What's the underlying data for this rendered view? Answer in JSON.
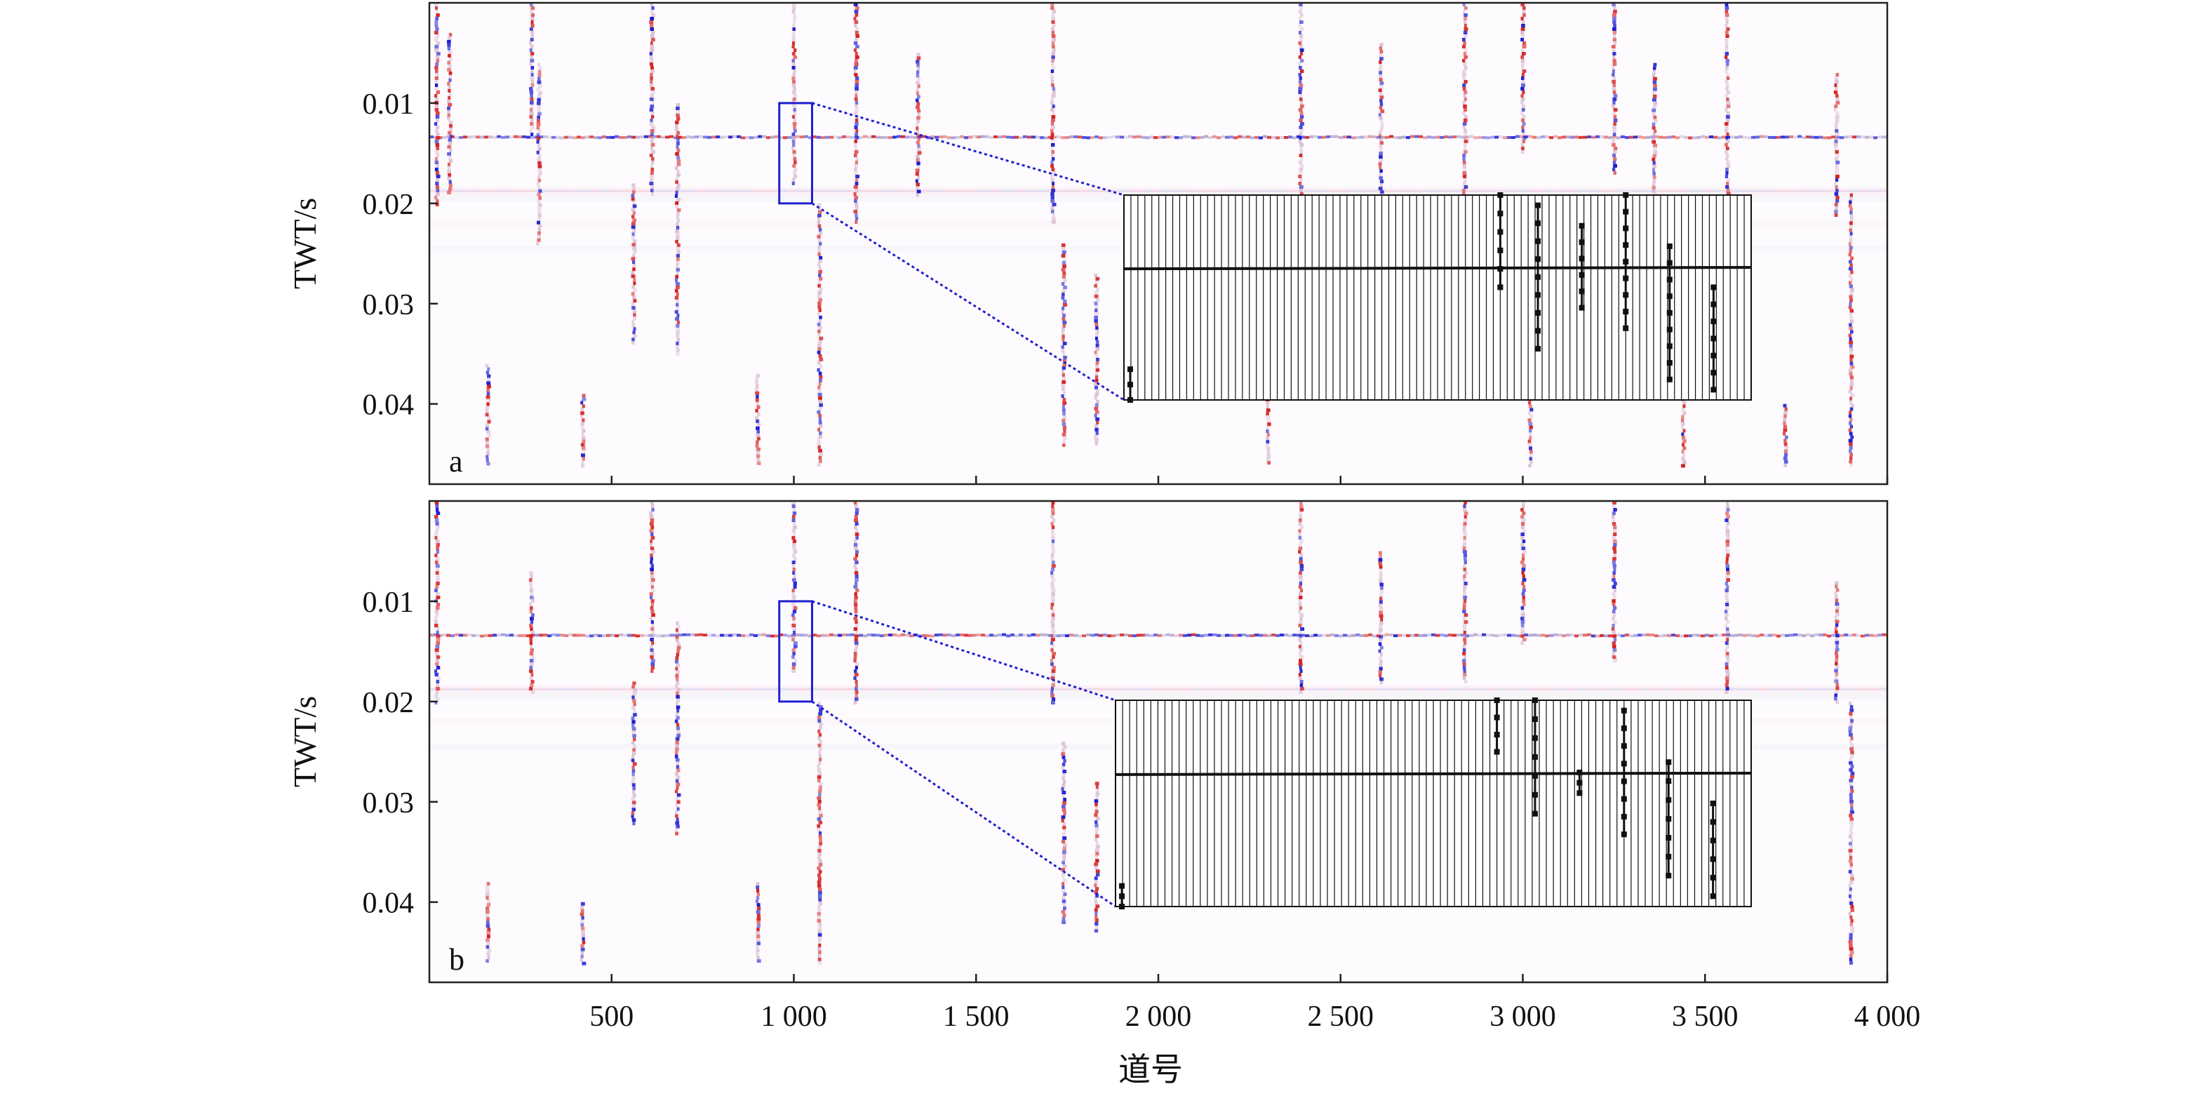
{
  "chart_data": {
    "type": "heatmap",
    "description": "Seismic sections (two panels) of two-way travel time versus trace number, with a zoomed wiggle-trace inset in each panel",
    "xlabel": "道号",
    "ylabel": "TWT/s",
    "xlim": [
      0,
      4000
    ],
    "ylim": [
      0.048,
      0.0
    ],
    "x_ticks": [
      500,
      1000,
      1500,
      2000,
      2500,
      3000,
      3500,
      4000
    ],
    "x_tick_labels": [
      "500",
      "1 000",
      "1 500",
      "2 000",
      "2 500",
      "3 000",
      "3 500",
      "4 000"
    ],
    "y_ticks": [
      0.01,
      0.02,
      0.03,
      0.04
    ],
    "y_tick_labels": [
      "0.01",
      "0.02",
      "0.03",
      "0.04"
    ],
    "colormap": {
      "positive": "#d42020",
      "negative": "#1a1ad0",
      "zero": "#ffffff"
    },
    "horizontal_reflectors_twt": [
      0.0134,
      0.0188
    ],
    "zoom_box": {
      "x_range": [
        960,
        1050
      ],
      "twt_range": [
        0.01,
        0.02
      ],
      "color": "#1f1fd0"
    },
    "panels": [
      {
        "label": "a",
        "vertical_events": [
          {
            "trace": 20,
            "twt": [
              0.0,
              0.02
            ]
          },
          {
            "trace": 55,
            "twt": [
              0.003,
              0.019
            ]
          },
          {
            "trace": 160,
            "twt": [
              0.036,
              0.046
            ]
          },
          {
            "trace": 280,
            "twt": [
              0.0,
              0.013
            ]
          },
          {
            "trace": 300,
            "twt": [
              0.006,
              0.024
            ]
          },
          {
            "trace": 420,
            "twt": [
              0.039,
              0.046
            ]
          },
          {
            "trace": 560,
            "twt": [
              0.018,
              0.034
            ]
          },
          {
            "trace": 610,
            "twt": [
              0.0,
              0.019
            ]
          },
          {
            "trace": 680,
            "twt": [
              0.01,
              0.035
            ]
          },
          {
            "trace": 900,
            "twt": [
              0.037,
              0.046
            ]
          },
          {
            "trace": 1000,
            "twt": [
              0.0,
              0.018
            ]
          },
          {
            "trace": 1070,
            "twt": [
              0.02,
              0.046
            ]
          },
          {
            "trace": 1170,
            "twt": [
              0.0,
              0.022
            ]
          },
          {
            "trace": 1340,
            "twt": [
              0.005,
              0.019
            ]
          },
          {
            "trace": 1710,
            "twt": [
              0.0,
              0.022
            ]
          },
          {
            "trace": 1740,
            "twt": [
              0.024,
              0.044
            ]
          },
          {
            "trace": 1830,
            "twt": [
              0.027,
              0.044
            ]
          },
          {
            "trace": 2300,
            "twt": [
              0.038,
              0.046
            ]
          },
          {
            "trace": 2390,
            "twt": [
              0.0,
              0.02
            ]
          },
          {
            "trace": 2610,
            "twt": [
              0.004,
              0.019
            ]
          },
          {
            "trace": 2840,
            "twt": [
              0.0,
              0.019
            ]
          },
          {
            "trace": 3000,
            "twt": [
              0.0,
              0.015
            ]
          },
          {
            "trace": 3020,
            "twt": [
              0.039,
              0.046
            ]
          },
          {
            "trace": 3250,
            "twt": [
              0.0,
              0.017
            ]
          },
          {
            "trace": 3360,
            "twt": [
              0.006,
              0.019
            ]
          },
          {
            "trace": 3440,
            "twt": [
              0.039,
              0.046
            ]
          },
          {
            "trace": 3560,
            "twt": [
              0.0,
              0.02
            ]
          },
          {
            "trace": 3720,
            "twt": [
              0.04,
              0.046
            ]
          },
          {
            "trace": 3860,
            "twt": [
              0.007,
              0.021
            ]
          },
          {
            "trace": 3900,
            "twt": [
              0.019,
              0.046
            ]
          }
        ],
        "inset_spikes": [
          {
            "trace_frac": 0.01,
            "twt": [
              0.037,
              0.04
            ]
          },
          {
            "trace_frac": 0.6,
            "twt": [
              0.02,
              0.029
            ]
          },
          {
            "trace_frac": 0.66,
            "twt": [
              0.021,
              0.035
            ]
          },
          {
            "trace_frac": 0.73,
            "twt": [
              0.023,
              0.031
            ]
          },
          {
            "trace_frac": 0.8,
            "twt": [
              0.02,
              0.033
            ]
          },
          {
            "trace_frac": 0.87,
            "twt": [
              0.025,
              0.038
            ]
          },
          {
            "trace_frac": 0.94,
            "twt": [
              0.029,
              0.039
            ]
          }
        ]
      },
      {
        "label": "b",
        "vertical_events": [
          {
            "trace": 20,
            "twt": [
              0.0,
              0.02
            ]
          },
          {
            "trace": 160,
            "twt": [
              0.038,
              0.046
            ]
          },
          {
            "trace": 280,
            "twt": [
              0.007,
              0.019
            ]
          },
          {
            "trace": 420,
            "twt": [
              0.04,
              0.046
            ]
          },
          {
            "trace": 560,
            "twt": [
              0.018,
              0.032
            ]
          },
          {
            "trace": 610,
            "twt": [
              0.0,
              0.017
            ]
          },
          {
            "trace": 680,
            "twt": [
              0.012,
              0.033
            ]
          },
          {
            "trace": 900,
            "twt": [
              0.038,
              0.046
            ]
          },
          {
            "trace": 1000,
            "twt": [
              0.0,
              0.017
            ]
          },
          {
            "trace": 1070,
            "twt": [
              0.02,
              0.046
            ]
          },
          {
            "trace": 1170,
            "twt": [
              0.0,
              0.02
            ]
          },
          {
            "trace": 1710,
            "twt": [
              0.0,
              0.02
            ]
          },
          {
            "trace": 1740,
            "twt": [
              0.024,
              0.042
            ]
          },
          {
            "trace": 1830,
            "twt": [
              0.028,
              0.043
            ]
          },
          {
            "trace": 2390,
            "twt": [
              0.0,
              0.019
            ]
          },
          {
            "trace": 2610,
            "twt": [
              0.005,
              0.018
            ]
          },
          {
            "trace": 2840,
            "twt": [
              0.0,
              0.018
            ]
          },
          {
            "trace": 3000,
            "twt": [
              0.0,
              0.014
            ]
          },
          {
            "trace": 3250,
            "twt": [
              0.0,
              0.016
            ]
          },
          {
            "trace": 3560,
            "twt": [
              0.0,
              0.019
            ]
          },
          {
            "trace": 3860,
            "twt": [
              0.008,
              0.02
            ]
          },
          {
            "trace": 3900,
            "twt": [
              0.02,
              0.046
            ]
          }
        ],
        "inset_spikes": [
          {
            "trace_frac": 0.01,
            "twt": [
              0.038,
              0.04
            ]
          },
          {
            "trace_frac": 0.6,
            "twt": [
              0.02,
              0.025
            ]
          },
          {
            "trace_frac": 0.66,
            "twt": [
              0.02,
              0.031
            ]
          },
          {
            "trace_frac": 0.73,
            "twt": [
              0.027,
              0.029
            ]
          },
          {
            "trace_frac": 0.8,
            "twt": [
              0.021,
              0.033
            ]
          },
          {
            "trace_frac": 0.87,
            "twt": [
              0.026,
              0.037
            ]
          },
          {
            "trace_frac": 0.94,
            "twt": [
              0.03,
              0.039
            ]
          }
        ]
      }
    ]
  }
}
